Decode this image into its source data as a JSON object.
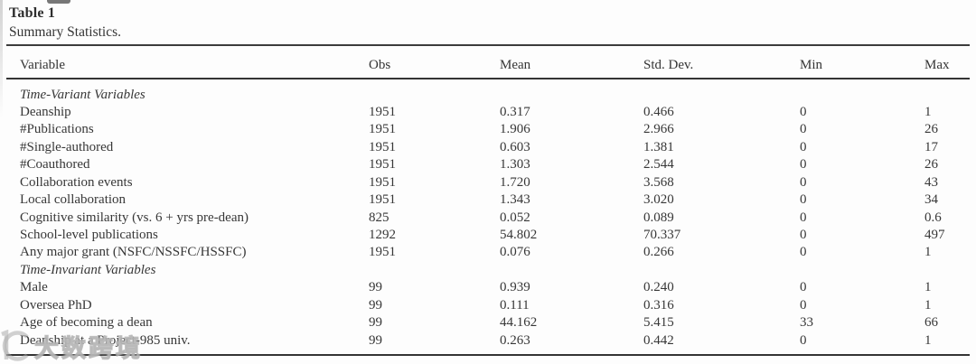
{
  "table": {
    "label": "Table 1",
    "caption": "Summary Statistics.",
    "columns": [
      "Variable",
      "Obs",
      "Mean",
      "Std. Dev.",
      "Min",
      "Max"
    ],
    "rows": [
      {
        "section": "Time-Variant Variables"
      },
      {
        "variable": "Deanship",
        "obs": "1951",
        "mean": "0.317",
        "std_dev": "0.466",
        "min": "0",
        "max": "1"
      },
      {
        "variable": "#Publications",
        "obs": "1951",
        "mean": "1.906",
        "std_dev": "2.966",
        "min": "0",
        "max": "26"
      },
      {
        "variable": "#Single-authored",
        "obs": "1951",
        "mean": "0.603",
        "std_dev": "1.381",
        "min": "0",
        "max": "17"
      },
      {
        "variable": "#Coauthored",
        "obs": "1951",
        "mean": "1.303",
        "std_dev": "2.544",
        "min": "0",
        "max": "26"
      },
      {
        "variable": "Collaboration events",
        "obs": "1951",
        "mean": "1.720",
        "std_dev": "3.568",
        "min": "0",
        "max": "43"
      },
      {
        "variable": "Local collaboration",
        "obs": "1951",
        "mean": "1.343",
        "std_dev": "3.020",
        "min": "0",
        "max": "34"
      },
      {
        "variable": "Cognitive similarity (vs. 6 + yrs pre-dean)",
        "obs": "825",
        "mean": "0.052",
        "std_dev": "0.089",
        "min": "0",
        "max": "0.6"
      },
      {
        "variable": "School-level publications",
        "obs": "1292",
        "mean": "54.802",
        "std_dev": "70.337",
        "min": "0",
        "max": "497"
      },
      {
        "variable": "Any major grant (NSFC/NSSFC/HSSFC)",
        "obs": "1951",
        "mean": "0.076",
        "std_dev": "0.266",
        "min": "0",
        "max": "1"
      },
      {
        "section": "Time-Invariant Variables"
      },
      {
        "variable": "Male",
        "obs": "99",
        "mean": "0.939",
        "std_dev": "0.240",
        "min": "0",
        "max": "1"
      },
      {
        "variable": "Oversea PhD",
        "obs": "99",
        "mean": "0.111",
        "std_dev": "0.316",
        "min": "0",
        "max": "1"
      },
      {
        "variable": "Age of becoming a dean",
        "obs": "99",
        "mean": "44.162",
        "std_dev": "5.415",
        "min": "33",
        "max": "66"
      },
      {
        "variable": "Deanship at a Project-985 univ.",
        "obs": "99",
        "mean": "0.263",
        "std_dev": "0.442",
        "min": "0",
        "max": "1"
      }
    ]
  },
  "watermark": {
    "text": "大数跨境"
  },
  "colors": {
    "text": "#343434",
    "rule": "#3c3c3c",
    "background": "#fdfdfd",
    "watermark": "#b5b5b5"
  }
}
